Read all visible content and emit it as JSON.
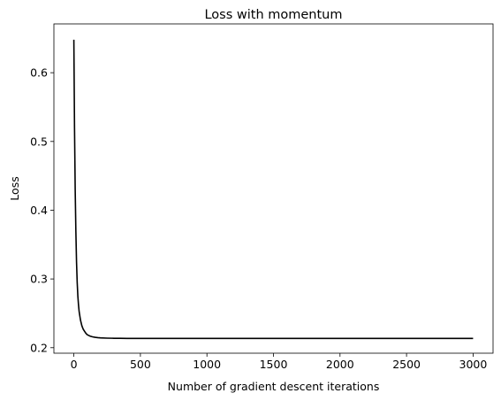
{
  "chart_data": {
    "type": "line",
    "title": "Loss with momentum",
    "xlabel": "Number of gradient descent iterations",
    "ylabel": "Loss",
    "xlim": [
      -150,
      3150
    ],
    "ylim": [
      0.192,
      0.671
    ],
    "xticks": [
      0,
      500,
      1000,
      1500,
      2000,
      2500,
      3000
    ],
    "yticks": [
      0.2,
      0.3,
      0.4,
      0.5,
      0.6
    ],
    "grid": false,
    "series": [
      {
        "color": "#000000",
        "x": [
          0,
          5,
          10,
          15,
          20,
          25,
          30,
          35,
          40,
          50,
          60,
          70,
          80,
          90,
          100,
          120,
          140,
          160,
          180,
          200,
          250,
          300,
          350,
          400,
          500,
          600,
          800,
          1000,
          1500,
          2000,
          2500,
          3000
        ],
        "y": [
          0.648,
          0.52,
          0.43,
          0.37,
          0.325,
          0.295,
          0.275,
          0.262,
          0.252,
          0.24,
          0.232,
          0.227,
          0.224,
          0.221,
          0.219,
          0.217,
          0.2158,
          0.2151,
          0.2146,
          0.2143,
          0.2139,
          0.2137,
          0.2136,
          0.2135,
          0.2135,
          0.2135,
          0.2135,
          0.2135,
          0.2135,
          0.2135,
          0.2135,
          0.2135
        ]
      }
    ]
  }
}
